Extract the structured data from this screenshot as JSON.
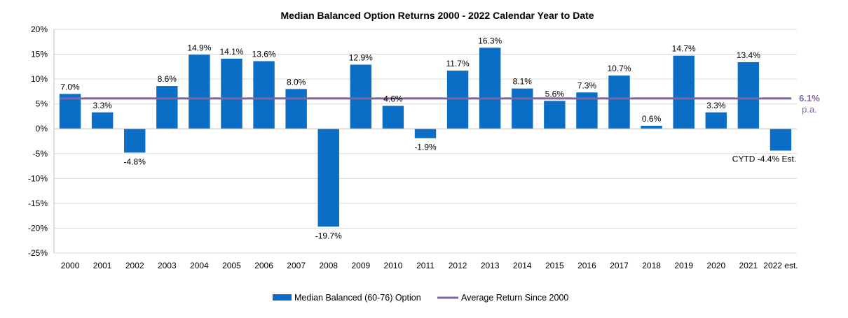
{
  "chart_data": {
    "type": "bar",
    "title": "Median Balanced Option Returns 2000 - 2022 Calendar Year to Date",
    "categories": [
      "2000",
      "2001",
      "2002",
      "2003",
      "2004",
      "2005",
      "2006",
      "2007",
      "2008",
      "2009",
      "2010",
      "2011",
      "2012",
      "2013",
      "2014",
      "2015",
      "2016",
      "2017",
      "2018",
      "2019",
      "2020",
      "2021",
      "2022 est."
    ],
    "series": [
      {
        "name": "Median Balanced (60-76) Option",
        "color": "#0A6EC7",
        "values": [
          7.0,
          3.3,
          -4.8,
          8.6,
          14.9,
          14.1,
          13.6,
          8.0,
          -19.7,
          12.9,
          4.6,
          -1.9,
          11.7,
          16.3,
          8.1,
          5.6,
          7.3,
          10.7,
          0.6,
          14.7,
          3.3,
          13.4,
          -4.4
        ],
        "labels": [
          "7.0%",
          "3.3%",
          "-4.8%",
          "8.6%",
          "14.9%",
          "14.1%",
          "13.6%",
          "8.0%",
          "-19.7%",
          "12.9%",
          "4.6%",
          "-1.9%",
          "11.7%",
          "16.3%",
          "8.1%",
          "5.6%",
          "7.3%",
          "10.7%",
          "0.6%",
          "14.7%",
          "3.3%",
          "13.4%",
          "CYTD -4.4% Est."
        ]
      }
    ],
    "average": {
      "name": "Average Return Since 2000",
      "value": 6.1,
      "label_value": "6.1%",
      "label_unit": "p.a.",
      "color": "#8064A2"
    },
    "ylim": [
      -25,
      20
    ],
    "yticks": [
      20,
      15,
      10,
      5,
      0,
      -5,
      -10,
      -15,
      -20,
      -25
    ],
    "ytick_labels": [
      "20%",
      "15%",
      "10%",
      "5%",
      "0%",
      "-5%",
      "-10%",
      "-15%",
      "-20%",
      "-25%"
    ],
    "grid": true,
    "legend_position": "bottom"
  }
}
